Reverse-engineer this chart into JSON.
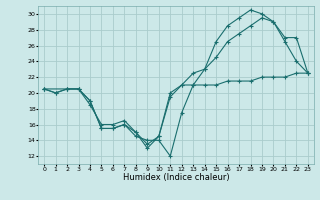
{
  "xlabel": "Humidex (Indice chaleur)",
  "background_color": "#cce8e8",
  "grid_color": "#aacccc",
  "line_color": "#1a6e6e",
  "xlim": [
    -0.5,
    23.5
  ],
  "ylim": [
    11,
    31
  ],
  "yticks": [
    12,
    14,
    16,
    18,
    20,
    22,
    24,
    26,
    28,
    30
  ],
  "xticks": [
    0,
    1,
    2,
    3,
    4,
    5,
    6,
    7,
    8,
    9,
    10,
    11,
    12,
    13,
    14,
    15,
    16,
    17,
    18,
    19,
    20,
    21,
    22,
    23
  ],
  "line1_x": [
    0,
    1,
    2,
    3,
    4,
    5,
    6,
    7,
    8,
    9,
    10,
    11,
    12,
    13,
    14,
    15,
    16,
    17,
    18,
    19,
    20,
    21,
    22,
    23
  ],
  "line1_y": [
    20.5,
    20.0,
    20.5,
    20.5,
    19.0,
    15.5,
    15.5,
    16.0,
    14.5,
    14.0,
    14.0,
    12.0,
    17.5,
    21.0,
    23.0,
    26.5,
    28.5,
    29.5,
    30.5,
    30.0,
    29.0,
    26.5,
    24.0,
    22.5
  ],
  "line2_x": [
    0,
    2,
    3,
    4,
    5,
    6,
    7,
    8,
    9,
    10,
    11,
    12,
    13,
    14,
    15,
    16,
    17,
    18,
    19,
    20,
    21,
    22,
    23
  ],
  "line2_y": [
    20.5,
    20.5,
    20.5,
    19.0,
    15.5,
    15.5,
    16.0,
    15.0,
    13.0,
    14.5,
    19.5,
    21.0,
    22.5,
    23.0,
    24.5,
    26.5,
    27.5,
    28.5,
    29.5,
    29.0,
    27.0,
    27.0,
    22.5
  ],
  "line3_x": [
    0,
    1,
    2,
    3,
    4,
    5,
    6,
    7,
    8,
    9,
    10,
    11,
    12,
    13,
    14,
    15,
    16,
    17,
    18,
    19,
    20,
    21,
    22,
    23
  ],
  "line3_y": [
    20.5,
    20.0,
    20.5,
    20.5,
    18.5,
    16.0,
    16.0,
    16.5,
    15.0,
    13.5,
    14.5,
    20.0,
    21.0,
    21.0,
    21.0,
    21.0,
    21.5,
    21.5,
    21.5,
    22.0,
    22.0,
    22.0,
    22.5,
    22.5
  ]
}
